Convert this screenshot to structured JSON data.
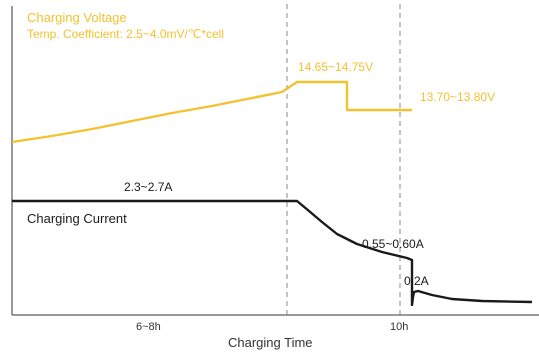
{
  "chart_data": {
    "type": "line",
    "xlabel": "Charging Time",
    "x_ticks": [
      "6~8h",
      "10h"
    ],
    "series": [
      {
        "name": "Charging Voltage",
        "subtitle": "Temp. Coefficient: 2.5~4.0mV/℃*cell",
        "color": "#f2c230",
        "points": [
          [
            0,
            142
          ],
          [
            40,
            136
          ],
          [
            80,
            129
          ],
          [
            120,
            121
          ],
          [
            160,
            113
          ],
          [
            200,
            106
          ],
          [
            240,
            98
          ],
          [
            270,
            92
          ],
          [
            285,
            82
          ],
          [
            335,
            82
          ],
          [
            335,
            110
          ],
          [
            400,
            110
          ]
        ]
      },
      {
        "name": "Charging Current",
        "color": "#1a1a1a",
        "points": [
          [
            0,
            201
          ],
          [
            285,
            201
          ],
          [
            297,
            211
          ],
          [
            310,
            222
          ],
          [
            325,
            234
          ],
          [
            345,
            244
          ],
          [
            370,
            252
          ],
          [
            395,
            258
          ],
          [
            400,
            260
          ],
          [
            400,
            305
          ],
          [
            401,
            297
          ],
          [
            402,
            292
          ],
          [
            406,
            291
          ],
          [
            420,
            295
          ],
          [
            440,
            299
          ],
          [
            470,
            301
          ],
          [
            520,
            302
          ]
        ]
      }
    ],
    "annotations": {
      "voltage_cv": "14.65~14.75V",
      "voltage_float": "13.70~13.80V",
      "current_cc": "2.3~2.7A",
      "current_end": "0.55~0.60A",
      "current_float": "0.2A"
    }
  },
  "colors": {
    "voltage": "#f2c230",
    "current": "#1a1a1a",
    "axis": "#333333",
    "guide": "#888888"
  }
}
